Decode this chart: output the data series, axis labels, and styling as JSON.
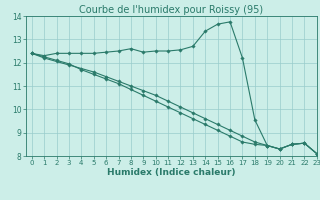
{
  "title": "Courbe de l'humidex pour Roissy (95)",
  "xlabel": "Humidex (Indice chaleur)",
  "background_color": "#cceee8",
  "grid_color": "#99cccc",
  "line_color": "#2a7a6a",
  "x_values": [
    0,
    1,
    2,
    3,
    4,
    5,
    6,
    7,
    8,
    9,
    10,
    11,
    12,
    13,
    14,
    15,
    16,
    17,
    18,
    19,
    20,
    21,
    22,
    23
  ],
  "line1_y": [
    12.4,
    12.3,
    12.4,
    12.4,
    12.4,
    12.4,
    12.45,
    12.5,
    12.6,
    12.45,
    12.5,
    12.5,
    12.55,
    12.7,
    13.35,
    13.65,
    13.75,
    12.2,
    9.55,
    8.45,
    8.3,
    8.5,
    8.55,
    8.1
  ],
  "line2_y": [
    12.4,
    12.25,
    12.1,
    11.95,
    11.7,
    11.5,
    11.3,
    11.1,
    10.85,
    10.6,
    10.35,
    10.1,
    9.85,
    9.6,
    9.35,
    9.1,
    8.85,
    8.6,
    8.5,
    8.45,
    8.3,
    8.5,
    8.55,
    8.1
  ],
  "line3_y": [
    12.4,
    12.2,
    12.05,
    11.9,
    11.75,
    11.6,
    11.4,
    11.2,
    11.0,
    10.8,
    10.6,
    10.35,
    10.1,
    9.85,
    9.6,
    9.35,
    9.1,
    8.85,
    8.6,
    8.45,
    8.3,
    8.5,
    8.55,
    8.1
  ],
  "ylim": [
    8,
    14
  ],
  "xlim": [
    -0.5,
    23
  ],
  "yticks": [
    8,
    9,
    10,
    11,
    12,
    13,
    14
  ],
  "xticks": [
    0,
    1,
    2,
    3,
    4,
    5,
    6,
    7,
    8,
    9,
    10,
    11,
    12,
    13,
    14,
    15,
    16,
    17,
    18,
    19,
    20,
    21,
    22,
    23
  ],
  "title_fontsize": 7,
  "xlabel_fontsize": 6.5,
  "tick_fontsize": 5,
  "figwidth": 3.2,
  "figheight": 2.0,
  "dpi": 100
}
